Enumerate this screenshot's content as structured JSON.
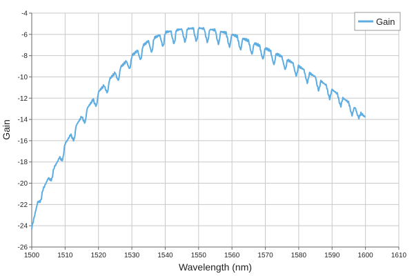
{
  "chart_data": {
    "type": "line",
    "title": "",
    "xlabel": "Wavelength (nm)",
    "ylabel": "Gain",
    "xlim": [
      1500,
      1610
    ],
    "ylim": [
      -26,
      -4
    ],
    "xticks": [
      1500,
      1510,
      1520,
      1530,
      1540,
      1550,
      1560,
      1570,
      1580,
      1590,
      1600,
      1610
    ],
    "yticks": [
      -26,
      -24,
      -22,
      -20,
      -18,
      -16,
      -14,
      -12,
      -10,
      -8,
      -6,
      -4
    ],
    "grid": true,
    "legend_position": "top-right",
    "series": [
      {
        "name": "Gain",
        "color": "#5DADE2",
        "envelope": {
          "x": [
            1500,
            1502,
            1505,
            1508,
            1510,
            1515,
            1520,
            1525,
            1530,
            1535,
            1540,
            1545,
            1550,
            1555,
            1560,
            1565,
            1570,
            1575,
            1580,
            1585,
            1590,
            1595,
            1600
          ],
          "y": [
            -24.2,
            -21.5,
            -19.5,
            -17.8,
            -16.3,
            -13.7,
            -11.4,
            -9.6,
            -8.0,
            -6.6,
            -5.8,
            -5.5,
            -5.4,
            -5.6,
            -6.0,
            -6.6,
            -7.3,
            -8.1,
            -9.0,
            -10.0,
            -11.2,
            -12.4,
            -13.8
          ]
        },
        "dips": {
          "x": [
            1502.7,
            1506.0,
            1509.3,
            1512.7,
            1516.0,
            1519.4,
            1522.7,
            1526.0,
            1529.4,
            1532.7,
            1536.0,
            1539.4,
            1542.7,
            1546.0,
            1549.4,
            1552.7,
            1556.0,
            1559.3,
            1562.6,
            1566.0,
            1569.3,
            1572.6,
            1576.0,
            1579.3,
            1582.6,
            1586.0,
            1589.3,
            1592.6,
            1596.0,
            1598.0
          ],
          "depth": [
            0.6,
            0.7,
            0.9,
            1.0,
            1.0,
            1.0,
            1.0,
            1.0,
            1.0,
            1.1,
            1.2,
            1.2,
            1.2,
            1.2,
            1.2,
            1.2,
            1.2,
            1.2,
            1.1,
            1.1,
            1.1,
            1.1,
            1.0,
            1.0,
            1.0,
            1.0,
            1.0,
            0.9,
            0.9,
            0.6
          ]
        }
      }
    ]
  }
}
